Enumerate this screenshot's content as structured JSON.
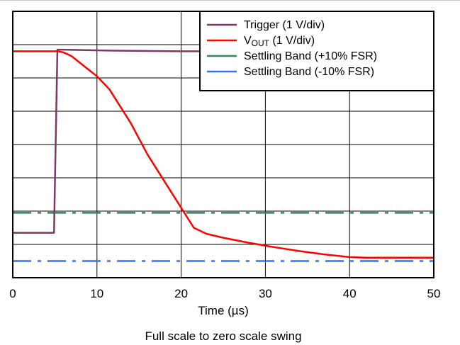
{
  "chart_data": {
    "type": "line",
    "title": "",
    "caption": "Full scale to zero scale swing",
    "xlabel": "Time (µs)",
    "ylabel": "",
    "xlim": [
      0,
      50
    ],
    "x_ticks": [
      0,
      10,
      20,
      30,
      40,
      50
    ],
    "y_divisions": 8,
    "grid": true,
    "legend_position": "top-right",
    "series": [
      {
        "name": "Trigger (1 V/div)",
        "color": "#7b3a66",
        "style": "solid",
        "x": [
          0,
          4.9,
          5.3,
          6,
          12,
          20,
          23,
          50
        ],
        "y": [
          0.85,
          0.85,
          6.35,
          6.35,
          6.32,
          6.3,
          6.3,
          6.3
        ]
      },
      {
        "name": "VOUT (1 V/div)",
        "color": "#ff0000",
        "style": "solid",
        "x": [
          0,
          5.3,
          6,
          7,
          8.5,
          10,
          11.5,
          14,
          16,
          18,
          20,
          21.5,
          23,
          25,
          28,
          31,
          34,
          37,
          40,
          42,
          44,
          50
        ],
        "y": [
          6.3,
          6.3,
          6.27,
          6.15,
          5.85,
          5.55,
          5.15,
          4.15,
          3.2,
          2.4,
          1.6,
          1.0,
          0.82,
          0.7,
          0.55,
          0.42,
          0.3,
          0.2,
          0.12,
          0.1,
          0.1,
          0.1
        ]
      },
      {
        "name": "Settling Band (+10% FSR)",
        "color": "#2e8b57",
        "style": "dashdot",
        "x": [
          0,
          50
        ],
        "y": [
          1.45,
          1.45
        ]
      },
      {
        "name": "Settling Band (-10% FSR)",
        "color": "#3c6cf0",
        "style": "dashdot",
        "x": [
          0,
          50
        ],
        "y": [
          0.0,
          0.0
        ]
      }
    ]
  }
}
